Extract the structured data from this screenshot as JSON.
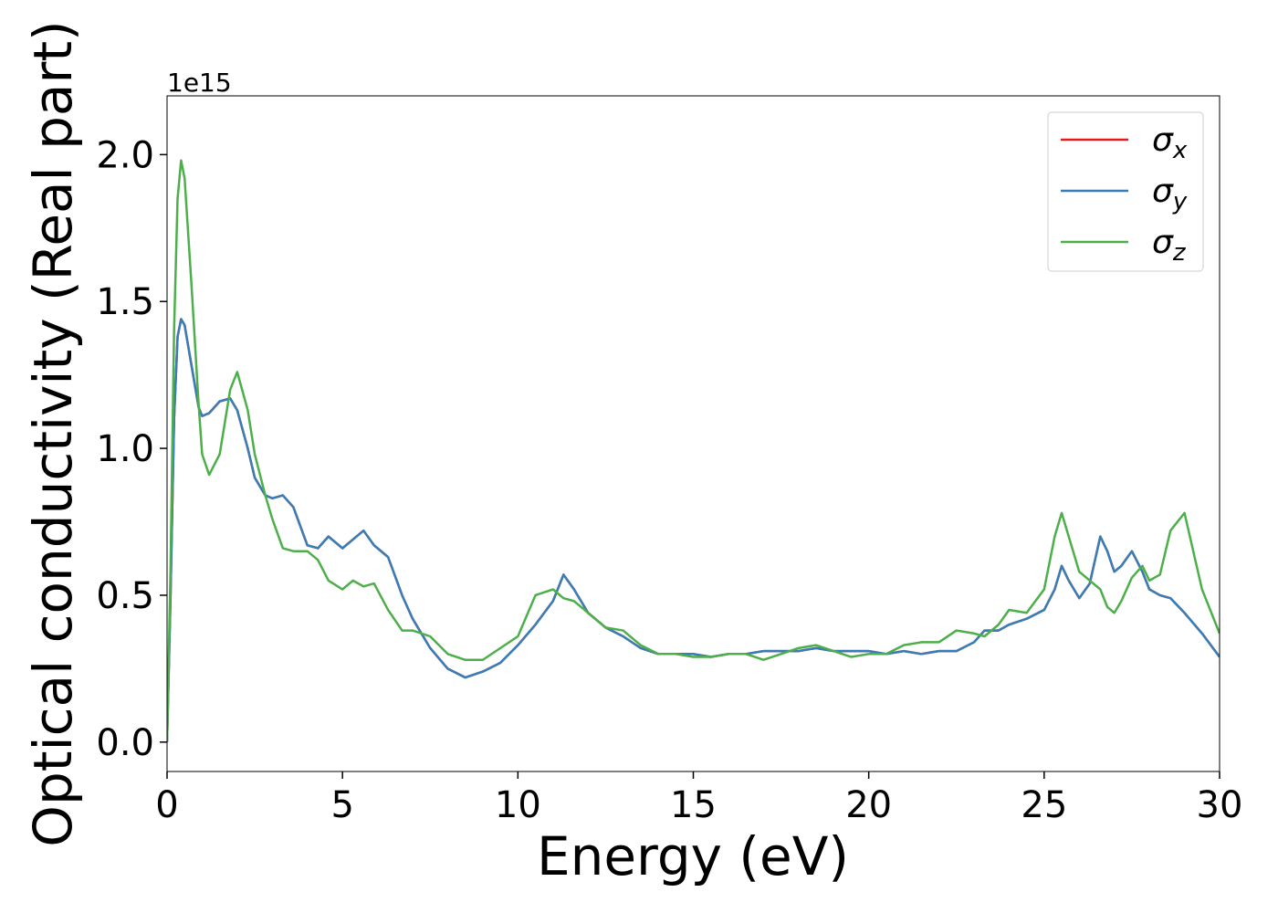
{
  "chart_data": {
    "type": "line",
    "ylabel": "Optical conductivity (Real part)",
    "xlabel": "Energy (eV)",
    "y_offset_label": "1e15",
    "x": [
      0,
      0.1,
      0.2,
      0.3,
      0.4,
      0.5,
      0.7,
      0.9,
      1.0,
      1.2,
      1.5,
      1.8,
      2.0,
      2.3,
      2.5,
      2.8,
      3.0,
      3.3,
      3.6,
      4.0,
      4.3,
      4.6,
      5.0,
      5.3,
      5.6,
      5.9,
      6.3,
      6.7,
      7.0,
      7.5,
      8.0,
      8.5,
      9.0,
      9.5,
      10.0,
      10.5,
      11.0,
      11.3,
      11.6,
      12.0,
      12.5,
      13.0,
      13.5,
      14.0,
      14.5,
      15.0,
      15.5,
      16.0,
      16.5,
      17.0,
      17.5,
      18.0,
      18.5,
      19.0,
      19.5,
      20.0,
      20.5,
      21.0,
      21.5,
      22.0,
      22.5,
      23.0,
      23.3,
      23.7,
      24.0,
      24.5,
      25.0,
      25.3,
      25.5,
      25.7,
      26.0,
      26.3,
      26.6,
      26.8,
      27.0,
      27.2,
      27.5,
      27.8,
      28.0,
      28.3,
      28.6,
      29.0,
      29.5,
      30.0
    ],
    "series": [
      {
        "name": "σx",
        "color": "#e41a1c",
        "values": [
          0.0,
          0.5,
          1.1,
          1.38,
          1.44,
          1.42,
          1.28,
          1.14,
          1.11,
          1.12,
          1.16,
          1.17,
          1.13,
          1.0,
          0.9,
          0.84,
          0.83,
          0.84,
          0.8,
          0.67,
          0.66,
          0.7,
          0.66,
          0.69,
          0.72,
          0.67,
          0.63,
          0.5,
          0.42,
          0.32,
          0.25,
          0.22,
          0.24,
          0.27,
          0.33,
          0.4,
          0.48,
          0.57,
          0.52,
          0.44,
          0.39,
          0.36,
          0.32,
          0.3,
          0.3,
          0.3,
          0.29,
          0.3,
          0.3,
          0.31,
          0.31,
          0.31,
          0.32,
          0.31,
          0.31,
          0.31,
          0.3,
          0.31,
          0.3,
          0.31,
          0.31,
          0.34,
          0.38,
          0.38,
          0.4,
          0.42,
          0.45,
          0.52,
          0.6,
          0.55,
          0.49,
          0.54,
          0.7,
          0.65,
          0.58,
          0.6,
          0.65,
          0.58,
          0.52,
          0.5,
          0.49,
          0.44,
          0.37,
          0.29
        ]
      },
      {
        "name": "σy",
        "color": "#377eb8",
        "values": [
          0.0,
          0.5,
          1.1,
          1.38,
          1.44,
          1.42,
          1.28,
          1.14,
          1.11,
          1.12,
          1.16,
          1.17,
          1.13,
          1.0,
          0.9,
          0.84,
          0.83,
          0.84,
          0.8,
          0.67,
          0.66,
          0.7,
          0.66,
          0.69,
          0.72,
          0.67,
          0.63,
          0.5,
          0.42,
          0.32,
          0.25,
          0.22,
          0.24,
          0.27,
          0.33,
          0.4,
          0.48,
          0.57,
          0.52,
          0.44,
          0.39,
          0.36,
          0.32,
          0.3,
          0.3,
          0.3,
          0.29,
          0.3,
          0.3,
          0.31,
          0.31,
          0.31,
          0.32,
          0.31,
          0.31,
          0.31,
          0.3,
          0.31,
          0.3,
          0.31,
          0.31,
          0.34,
          0.38,
          0.38,
          0.4,
          0.42,
          0.45,
          0.52,
          0.6,
          0.55,
          0.49,
          0.54,
          0.7,
          0.65,
          0.58,
          0.6,
          0.65,
          0.58,
          0.52,
          0.5,
          0.49,
          0.44,
          0.37,
          0.29
        ]
      },
      {
        "name": "σz",
        "color": "#4daf4a",
        "values": [
          0.0,
          0.6,
          1.4,
          1.85,
          1.98,
          1.92,
          1.55,
          1.15,
          0.98,
          0.91,
          0.98,
          1.2,
          1.26,
          1.13,
          0.98,
          0.84,
          0.76,
          0.66,
          0.65,
          0.65,
          0.62,
          0.55,
          0.52,
          0.55,
          0.53,
          0.54,
          0.45,
          0.38,
          0.38,
          0.36,
          0.3,
          0.28,
          0.28,
          0.32,
          0.36,
          0.5,
          0.52,
          0.49,
          0.48,
          0.44,
          0.39,
          0.38,
          0.33,
          0.3,
          0.3,
          0.29,
          0.29,
          0.3,
          0.3,
          0.28,
          0.3,
          0.32,
          0.33,
          0.31,
          0.29,
          0.3,
          0.3,
          0.33,
          0.34,
          0.34,
          0.38,
          0.37,
          0.36,
          0.4,
          0.45,
          0.44,
          0.52,
          0.7,
          0.78,
          0.7,
          0.58,
          0.55,
          0.52,
          0.46,
          0.44,
          0.48,
          0.56,
          0.6,
          0.55,
          0.57,
          0.72,
          0.78,
          0.52,
          0.37
        ]
      }
    ],
    "xlim": [
      0,
      30
    ],
    "xticks": [
      0,
      5,
      10,
      15,
      20,
      25,
      30
    ],
    "ylim": [
      -0.1,
      2.2
    ],
    "yticks": [
      {
        "value": 0,
        "label": "0.0"
      },
      {
        "value": 0.5,
        "label": "0.5"
      },
      {
        "value": 1,
        "label": "1.0"
      },
      {
        "value": 1.5,
        "label": "1.5"
      },
      {
        "value": 2,
        "label": "2.0"
      }
    ],
    "grid": false,
    "legend": "upper right"
  }
}
